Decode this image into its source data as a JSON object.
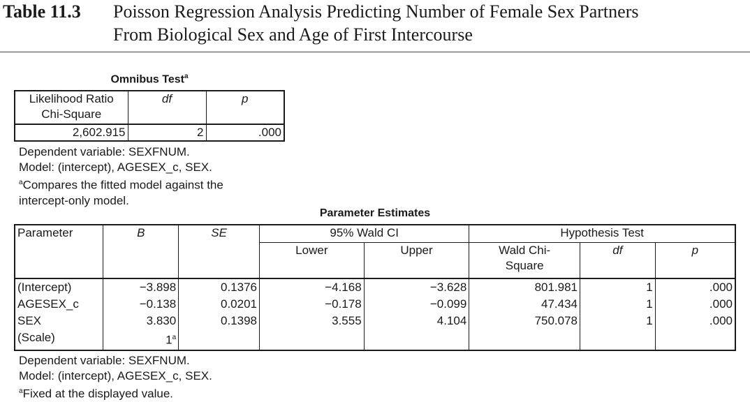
{
  "caption": {
    "label": "Table 11.3",
    "line1": "Poisson Regression Analysis Predicting Number of Female Sex Partners",
    "line2": "From Biological Sex and Age of First Intercourse"
  },
  "omnibus": {
    "title": "Omnibus Test",
    "title_sup": "a",
    "headers": {
      "lr_line1": "Likelihood Ratio",
      "lr_line2": "Chi-Square",
      "df": "df",
      "p": "p"
    },
    "row": {
      "chi_square": "2,602.915",
      "df": "2",
      "p": ".000"
    },
    "notes": {
      "dep": "Dependent variable: SEXFNUM.",
      "model": "Model: (intercept), AGESEX_c, SEX.",
      "foot_sup": "a",
      "foot_line1": "Compares the fitted model against the",
      "foot_line2": "intercept-only model."
    }
  },
  "parameters": {
    "title": "Parameter Estimates",
    "headers": {
      "parameter": "Parameter",
      "b": "B",
      "se": "SE",
      "wald_ci": "95% Wald CI",
      "lower": "Lower",
      "upper": "Upper",
      "hypothesis": "Hypothesis Test",
      "wald_line1": "Wald Chi-",
      "wald_line2": "Square",
      "df": "df",
      "p": "p"
    },
    "rows": [
      {
        "name": "(Intercept)",
        "b": "−3.898",
        "se": "0.1376",
        "lower": "−4.168",
        "upper": "−3.628",
        "wald": "801.981",
        "df": "1",
        "p": ".000"
      },
      {
        "name": "AGESEX_c",
        "b": "−0.138",
        "se": "0.0201",
        "lower": "−0.178",
        "upper": "−0.099",
        "wald": "47.434",
        "df": "1",
        "p": ".000"
      },
      {
        "name": "SEX",
        "b": "3.830",
        "se": "0.1398",
        "lower": "3.555",
        "upper": "4.104",
        "wald": "750.078",
        "df": "1",
        "p": ".000"
      },
      {
        "name": "(Scale)",
        "b": "1",
        "b_sup": "a"
      }
    ],
    "notes": {
      "dep": "Dependent variable: SEXFNUM.",
      "model": "Model: (intercept), AGESEX_c, SEX.",
      "foot_sup": "a",
      "foot": "Fixed at the displayed value."
    }
  }
}
